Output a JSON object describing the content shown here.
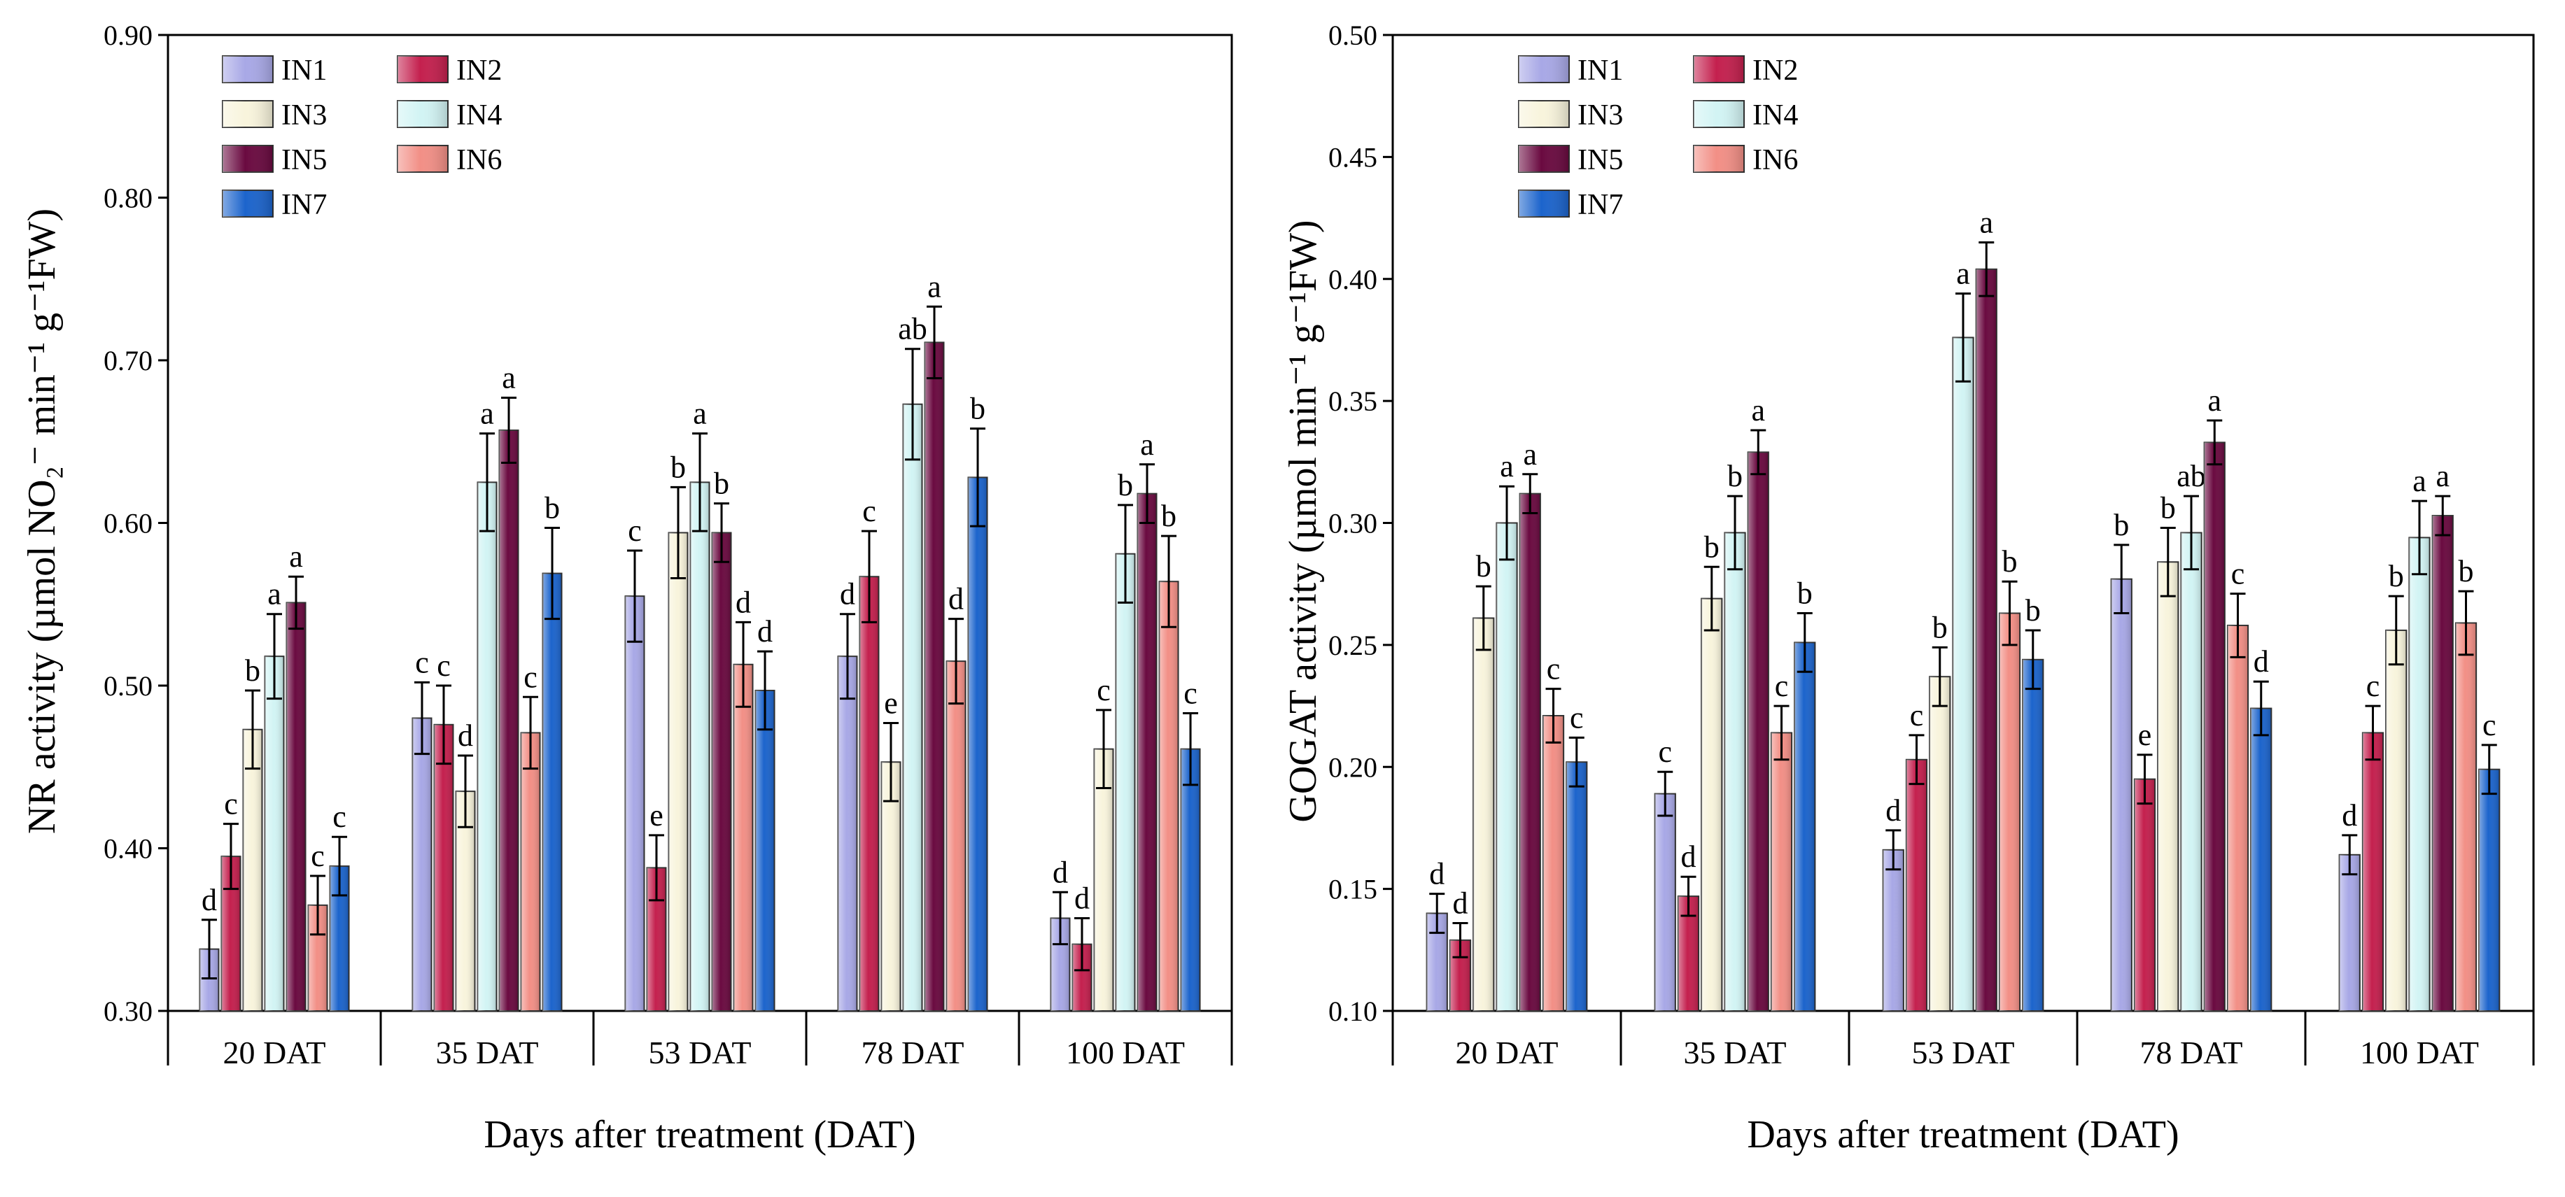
{
  "chart_data": [
    {
      "type": "bar",
      "ylabel": "NR activity (µmol NO₂⁻ min⁻¹ g⁻¹FW)",
      "xlabel": "Days after treatment (DAT)",
      "ylim": [
        0.3,
        0.9
      ],
      "yticks": [
        "0.30",
        "0.40",
        "0.50",
        "0.60",
        "0.70",
        "0.80",
        "0.90"
      ],
      "legend_position": "top-left",
      "categories": [
        "20 DAT",
        "35 DAT",
        "53 DAT",
        "78 DAT",
        "100 DAT"
      ],
      "series": [
        {
          "name": "IN1",
          "values": [
            0.338,
            0.48,
            0.555,
            0.518,
            0.357
          ],
          "errors": [
            0.018,
            0.022,
            0.028,
            0.026,
            0.016
          ],
          "letters": [
            "d",
            "c",
            "c",
            "d",
            "d"
          ]
        },
        {
          "name": "IN2",
          "values": [
            0.395,
            0.476,
            0.388,
            0.567,
            0.341
          ],
          "errors": [
            0.02,
            0.024,
            0.02,
            0.028,
            0.016
          ],
          "letters": [
            "c",
            "c",
            "e",
            "c",
            "d"
          ]
        },
        {
          "name": "IN3",
          "values": [
            0.473,
            0.435,
            0.594,
            0.453,
            0.461
          ],
          "errors": [
            0.024,
            0.022,
            0.028,
            0.024,
            0.024
          ],
          "letters": [
            "b",
            "d",
            "b",
            "e",
            "c"
          ]
        },
        {
          "name": "IN4",
          "values": [
            0.518,
            0.625,
            0.625,
            0.673,
            0.581
          ],
          "errors": [
            0.026,
            0.03,
            0.03,
            0.034,
            0.03
          ],
          "letters": [
            "a",
            "a",
            "a",
            "ab",
            "b"
          ]
        },
        {
          "name": "IN5",
          "values": [
            0.551,
            0.657,
            0.594,
            0.711,
            0.618
          ],
          "errors": [
            0.016,
            0.02,
            0.018,
            0.022,
            0.018
          ],
          "letters": [
            "a",
            "a",
            "b",
            "a",
            "a"
          ]
        },
        {
          "name": "IN6",
          "values": [
            0.365,
            0.471,
            0.513,
            0.515,
            0.564
          ],
          "errors": [
            0.018,
            0.022,
            0.026,
            0.026,
            0.028
          ],
          "letters": [
            "c",
            "c",
            "d",
            "d",
            "b"
          ]
        },
        {
          "name": "IN7",
          "values": [
            0.389,
            0.569,
            0.497,
            0.628,
            0.461
          ],
          "errors": [
            0.018,
            0.028,
            0.024,
            0.03,
            0.022
          ],
          "letters": [
            "c",
            "b",
            "d",
            "b",
            "c"
          ]
        }
      ]
    },
    {
      "type": "bar",
      "ylabel": "GOGAT activity (µmol min⁻¹ g⁻¹FW)",
      "xlabel": "Days after treatment (DAT)",
      "ylim": [
        0.1,
        0.5
      ],
      "yticks": [
        "0.10",
        "0.15",
        "0.20",
        "0.25",
        "0.30",
        "0.35",
        "0.40",
        "0.45",
        "0.50"
      ],
      "legend_position": "top-left",
      "categories": [
        "20 DAT",
        "35 DAT",
        "53 DAT",
        "78 DAT",
        "100 DAT"
      ],
      "series": [
        {
          "name": "IN1",
          "values": [
            0.14,
            0.189,
            0.166,
            0.277,
            0.164
          ],
          "errors": [
            0.008,
            0.009,
            0.008,
            0.014,
            0.008
          ],
          "letters": [
            "d",
            "c",
            "d",
            "b",
            "d"
          ]
        },
        {
          "name": "IN2",
          "values": [
            0.129,
            0.147,
            0.203,
            0.195,
            0.214
          ],
          "errors": [
            0.007,
            0.008,
            0.01,
            0.01,
            0.011
          ],
          "letters": [
            "d",
            "d",
            "c",
            "e",
            "c"
          ]
        },
        {
          "name": "IN3",
          "values": [
            0.261,
            0.269,
            0.237,
            0.284,
            0.256
          ],
          "errors": [
            0.013,
            0.013,
            0.012,
            0.014,
            0.014
          ],
          "letters": [
            "b",
            "b",
            "b",
            "b",
            "b"
          ]
        },
        {
          "name": "IN4",
          "values": [
            0.3,
            0.296,
            0.376,
            0.296,
            0.294
          ],
          "errors": [
            0.015,
            0.015,
            0.018,
            0.015,
            0.015
          ],
          "letters": [
            "a",
            "b",
            "a",
            "ab",
            "a"
          ]
        },
        {
          "name": "IN5",
          "values": [
            0.312,
            0.329,
            0.404,
            0.333,
            0.303
          ],
          "errors": [
            0.008,
            0.009,
            0.011,
            0.009,
            0.008
          ],
          "letters": [
            "a",
            "a",
            "a",
            "a",
            "a"
          ]
        },
        {
          "name": "IN6",
          "values": [
            0.221,
            0.214,
            0.263,
            0.258,
            0.259
          ],
          "errors": [
            0.011,
            0.011,
            0.013,
            0.013,
            0.013
          ],
          "letters": [
            "c",
            "c",
            "b",
            "c",
            "b"
          ]
        },
        {
          "name": "IN7",
          "values": [
            0.202,
            0.251,
            0.244,
            0.224,
            0.199
          ],
          "errors": [
            0.01,
            0.012,
            0.012,
            0.011,
            0.01
          ],
          "letters": [
            "c",
            "b",
            "b",
            "d",
            "c"
          ]
        }
      ]
    }
  ],
  "colors": {
    "IN1": "#a8a8e6",
    "IN2": "#c4204e",
    "IN3": "#f8f4dc",
    "IN4": "#d2f4f4",
    "IN5": "#6a0a40",
    "IN6": "#f28f86",
    "IN7": "#1c64cc"
  }
}
